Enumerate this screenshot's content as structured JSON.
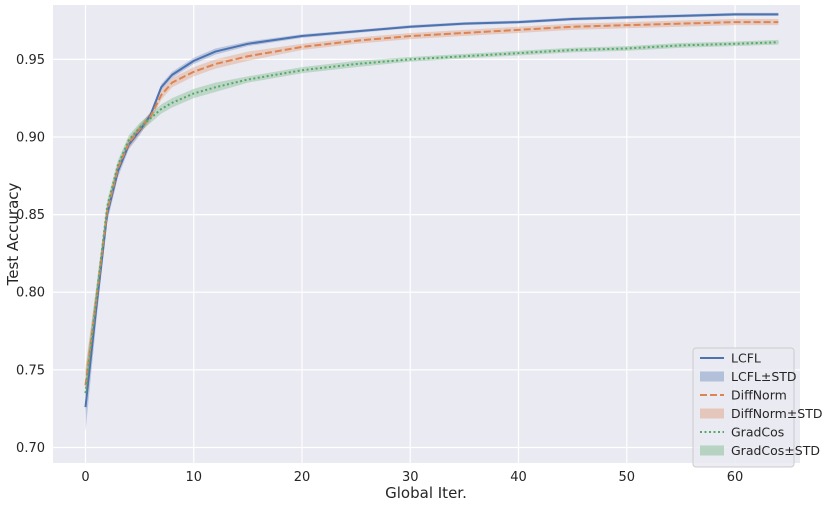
{
  "chart_data": {
    "type": "line",
    "xlabel": "Global Iter.",
    "ylabel": "Test Accuracy",
    "xlim": [
      -3,
      66
    ],
    "ylim": [
      0.69,
      0.985
    ],
    "xticks": [
      0,
      10,
      20,
      30,
      40,
      50,
      60
    ],
    "yticks": [
      0.7,
      0.75,
      0.8,
      0.85,
      0.9,
      0.95
    ],
    "ytick_labels": [
      "0.70",
      "0.75",
      "0.80",
      "0.85",
      "0.90",
      "0.95"
    ],
    "grid": true,
    "legend_position": "lower-right",
    "legend": [
      {
        "label": "LCFL",
        "kind": "line",
        "series": 0
      },
      {
        "label": "LCFL±STD",
        "kind": "band",
        "series": 0
      },
      {
        "label": "DiffNorm",
        "kind": "line",
        "series": 1
      },
      {
        "label": "DiffNorm±STD",
        "kind": "band",
        "series": 1
      },
      {
        "label": "GradCos",
        "kind": "line",
        "series": 2
      },
      {
        "label": "GradCos±STD",
        "kind": "band",
        "series": 2
      }
    ],
    "x": [
      0,
      1,
      2,
      3,
      4,
      5,
      6,
      7,
      8,
      10,
      12,
      15,
      20,
      25,
      30,
      35,
      40,
      45,
      50,
      55,
      60,
      64
    ],
    "series": [
      {
        "name": "LCFL",
        "color": "#4c72b0",
        "dash": "solid",
        "values": [
          0.726,
          0.79,
          0.85,
          0.878,
          0.895,
          0.904,
          0.914,
          0.932,
          0.94,
          0.949,
          0.955,
          0.96,
          0.965,
          0.968,
          0.971,
          0.973,
          0.974,
          0.976,
          0.977,
          0.978,
          0.979,
          0.979
        ],
        "std": [
          0.016,
          0.009,
          0.005,
          0.004,
          0.003,
          0.003,
          0.002,
          0.002,
          0.002,
          0.002,
          0.002,
          0.0015,
          0.0012,
          0.001,
          0.001,
          0.001,
          0.001,
          0.001,
          0.001,
          0.001,
          0.001,
          0.001
        ]
      },
      {
        "name": "DiffNorm",
        "color": "#dd8452",
        "dash": "dashed",
        "values": [
          0.74,
          0.795,
          0.852,
          0.88,
          0.896,
          0.905,
          0.913,
          0.927,
          0.935,
          0.942,
          0.947,
          0.952,
          0.958,
          0.962,
          0.965,
          0.967,
          0.969,
          0.971,
          0.972,
          0.973,
          0.974,
          0.974
        ],
        "std": [
          0.012,
          0.008,
          0.004,
          0.003,
          0.003,
          0.003,
          0.003,
          0.003,
          0.003,
          0.003,
          0.003,
          0.003,
          0.002,
          0.002,
          0.002,
          0.002,
          0.002,
          0.002,
          0.002,
          0.002,
          0.002,
          0.002
        ]
      },
      {
        "name": "GradCos",
        "color": "#55a868",
        "dash": "dotted",
        "values": [
          0.735,
          0.796,
          0.855,
          0.882,
          0.898,
          0.906,
          0.912,
          0.918,
          0.922,
          0.928,
          0.932,
          0.937,
          0.943,
          0.947,
          0.95,
          0.952,
          0.954,
          0.956,
          0.957,
          0.959,
          0.96,
          0.961
        ],
        "std": [
          0.014,
          0.008,
          0.004,
          0.003,
          0.003,
          0.003,
          0.003,
          0.003,
          0.003,
          0.003,
          0.003,
          0.002,
          0.002,
          0.002,
          0.0015,
          0.0015,
          0.0015,
          0.0015,
          0.0015,
          0.0015,
          0.0015,
          0.0015
        ]
      }
    ]
  }
}
